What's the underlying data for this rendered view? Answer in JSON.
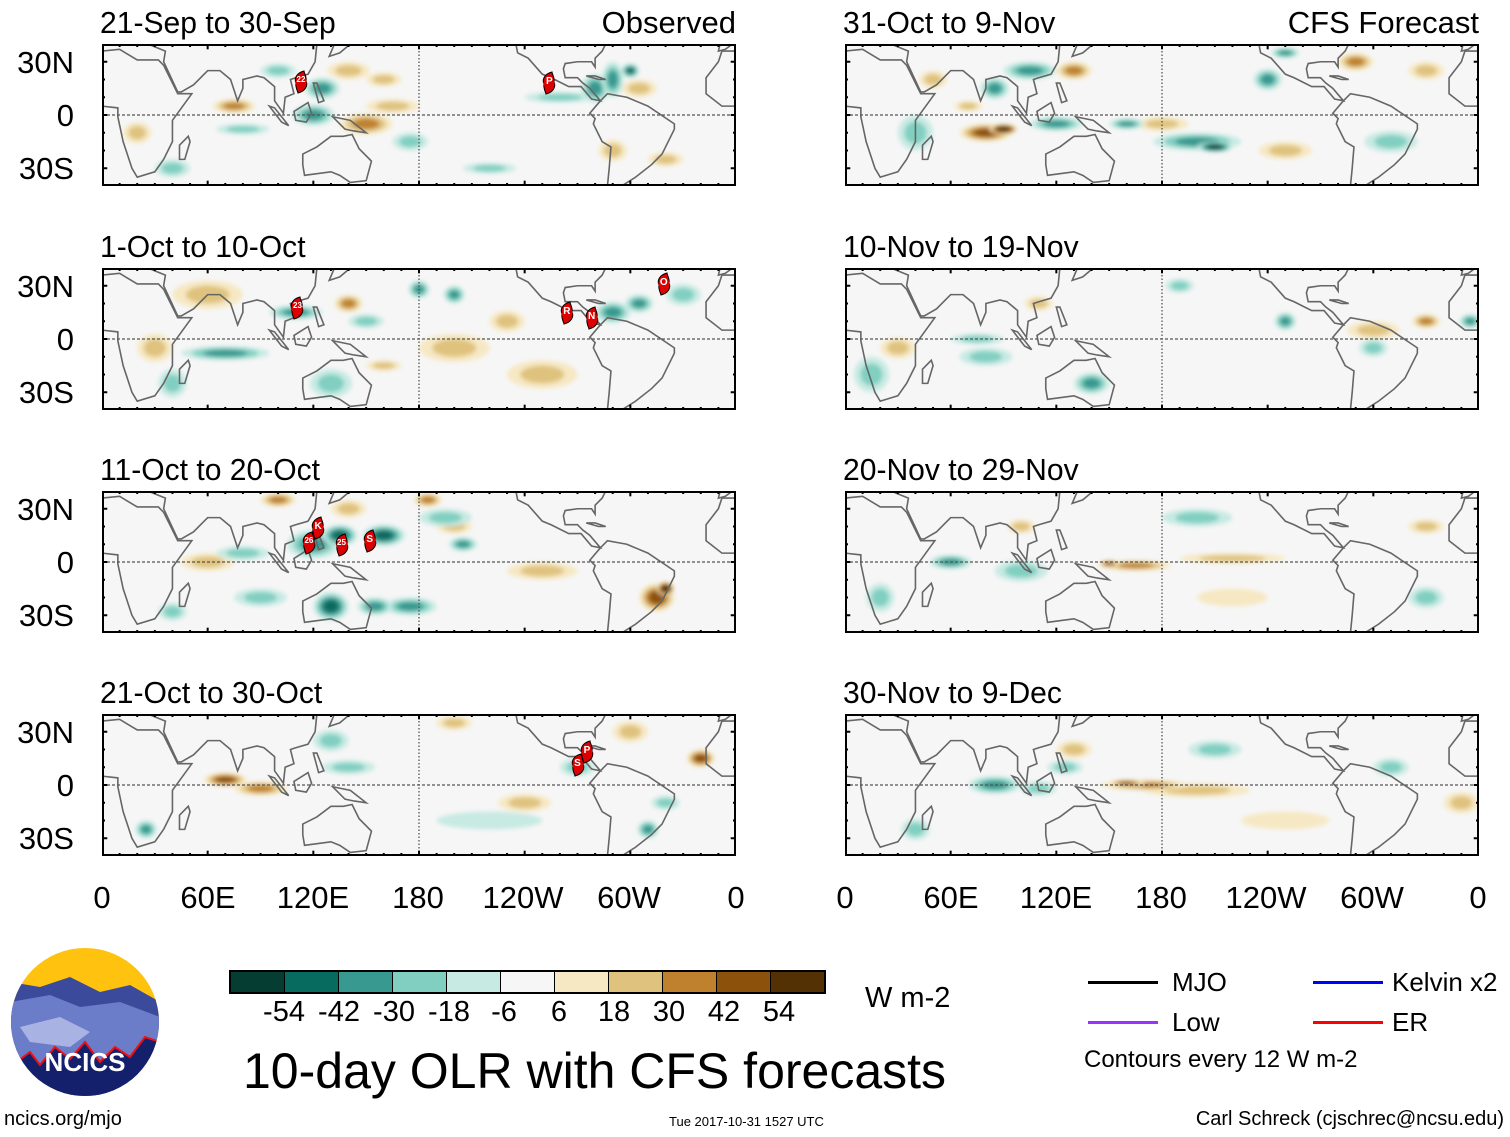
{
  "figure_title": "10-day OLR with CFS forecasts",
  "units": "W m-2",
  "left_tag": "Observed",
  "right_tag": "CFS Forecast",
  "lat_labels": [
    "30N",
    "0",
    "30S"
  ],
  "lon_labels": [
    "0",
    "60E",
    "120E",
    "180",
    "120W",
    "60W",
    "0"
  ],
  "colorbar": {
    "labels": [
      "-54",
      "-42",
      "-30",
      "-18",
      "-6",
      "6",
      "18",
      "30",
      "42",
      "54"
    ],
    "colors": [
      "#053d33",
      "#086b60",
      "#389990",
      "#80cfc1",
      "#c7eae3",
      "#f6f6f6",
      "#f6e8c3",
      "#dfc27d",
      "#bf812d",
      "#8c510a",
      "#543005"
    ]
  },
  "legend": {
    "mjo": "MJO",
    "kelvin": "Kelvin x2",
    "low": "Low",
    "er": "ER",
    "contours": "Contours every 12 W m-2",
    "colors": {
      "mjo": "#000000",
      "kelvin": "#0000ff",
      "low": "#9933ff",
      "er": "#ff0000"
    }
  },
  "footer": {
    "left": "ncics.org/mjo",
    "center": "Tue 2017-10-31 1527 UTC",
    "right": "Carl Schreck (cjschrec@ncsu.edu)"
  },
  "logo_text": "NCICS",
  "panels": [
    {
      "title": "21-Sep to 30-Sep",
      "side": "observed",
      "storms": [
        {
          "label": "22",
          "lon": 113,
          "lat": 18.5
        },
        {
          "label": "P",
          "lon": 254,
          "lat": 18
        }
      ],
      "anomalies": [
        [
          75,
          5,
          12,
          4,
          30
        ],
        [
          150,
          -5,
          15,
          6,
          35
        ],
        [
          165,
          5,
          15,
          4,
          20
        ],
        [
          140,
          25,
          12,
          5,
          15
        ],
        [
          160,
          20,
          10,
          4,
          20
        ],
        [
          20,
          -10,
          8,
          6,
          15
        ],
        [
          290,
          -20,
          8,
          6,
          15
        ],
        [
          320,
          -25,
          10,
          4,
          15
        ],
        [
          305,
          15,
          10,
          5,
          15
        ],
        [
          120,
          0,
          12,
          6,
          -25
        ],
        [
          125,
          15,
          10,
          6,
          -25
        ],
        [
          80,
          -8,
          15,
          3,
          -20
        ],
        [
          100,
          25,
          10,
          4,
          -20
        ],
        [
          175,
          -15,
          10,
          5,
          -20
        ],
        [
          280,
          15,
          8,
          8,
          -25
        ],
        [
          290,
          20,
          6,
          10,
          -35
        ],
        [
          300,
          25,
          5,
          4,
          -45
        ],
        [
          260,
          10,
          20,
          3,
          -12
        ],
        [
          40,
          -30,
          10,
          5,
          -12
        ],
        [
          220,
          -30,
          15,
          3,
          -12
        ]
      ]
    },
    {
      "title": "1-Oct to 10-Oct",
      "side": "observed",
      "storms": [
        {
          "label": "23",
          "lon": 111,
          "lat": 17.4
        },
        {
          "label": "R",
          "lon": 264,
          "lat": 14.5
        },
        {
          "label": "N",
          "lon": 278,
          "lat": 12
        },
        {
          "label": "O",
          "lon": 319,
          "lat": 31
        }
      ],
      "anomalies": [
        [
          230,
          10,
          10,
          6,
          15
        ],
        [
          140,
          20,
          8,
          5,
          25
        ],
        [
          160,
          -15,
          10,
          3,
          20
        ],
        [
          200,
          -5,
          20,
          8,
          12
        ],
        [
          250,
          -20,
          20,
          8,
          12
        ],
        [
          30,
          -5,
          10,
          8,
          15
        ],
        [
          60,
          25,
          20,
          8,
          12
        ],
        [
          70,
          -8,
          25,
          4,
          -25
        ],
        [
          110,
          15,
          15,
          4,
          -25
        ],
        [
          150,
          10,
          10,
          4,
          -22
        ],
        [
          180,
          28,
          6,
          5,
          -25
        ],
        [
          200,
          25,
          6,
          5,
          -30
        ],
        [
          290,
          15,
          10,
          6,
          -30
        ],
        [
          305,
          20,
          8,
          5,
          -30
        ],
        [
          130,
          -25,
          12,
          8,
          -18
        ],
        [
          40,
          -25,
          8,
          8,
          -15
        ],
        [
          330,
          25,
          10,
          6,
          -15
        ]
      ]
    },
    {
      "title": "11-Oct to 20-Oct",
      "side": "observed",
      "storms": [
        {
          "label": "K",
          "lon": 122.7,
          "lat": 19
        },
        {
          "label": "26",
          "lon": 117.5,
          "lat": 10.5
        },
        {
          "label": "25",
          "lon": 136,
          "lat": 9.5
        },
        {
          "label": "S",
          "lon": 152,
          "lat": 12
        }
      ],
      "anomalies": [
        [
          185,
          35,
          8,
          4,
          30
        ],
        [
          100,
          35,
          10,
          4,
          25
        ],
        [
          140,
          30,
          10,
          5,
          20
        ],
        [
          315,
          -20,
          10,
          8,
          45
        ],
        [
          320,
          -15,
          5,
          4,
          60
        ],
        [
          250,
          -5,
          20,
          5,
          15
        ],
        [
          60,
          0,
          15,
          5,
          15
        ],
        [
          200,
          20,
          10,
          4,
          15
        ],
        [
          120,
          10,
          15,
          8,
          -35
        ],
        [
          135,
          15,
          10,
          6,
          -45
        ],
        [
          160,
          15,
          12,
          6,
          -40
        ],
        [
          130,
          -25,
          10,
          8,
          -40
        ],
        [
          155,
          -25,
          10,
          5,
          -35
        ],
        [
          175,
          -25,
          15,
          5,
          -30
        ],
        [
          205,
          10,
          8,
          4,
          -25
        ],
        [
          80,
          5,
          15,
          4,
          -22
        ],
        [
          195,
          25,
          15,
          5,
          -20
        ],
        [
          90,
          -20,
          15,
          5,
          -18
        ],
        [
          40,
          -28,
          8,
          5,
          -15
        ]
      ]
    },
    {
      "title": "21-Oct to 30-Oct",
      "side": "observed",
      "storms": [
        {
          "label": "P",
          "lon": 275.4,
          "lat": 18.5
        },
        {
          "label": "S",
          "lon": 270,
          "lat": 11
        }
      ],
      "anomalies": [
        [
          70,
          3,
          12,
          4,
          40
        ],
        [
          90,
          -2,
          15,
          4,
          30
        ],
        [
          340,
          15,
          8,
          5,
          40
        ],
        [
          300,
          30,
          10,
          6,
          20
        ],
        [
          200,
          35,
          10,
          4,
          15
        ],
        [
          240,
          -10,
          15,
          5,
          12
        ],
        [
          130,
          25,
          10,
          6,
          -20
        ],
        [
          140,
          10,
          15,
          4,
          -18
        ],
        [
          270,
          10,
          10,
          5,
          -20
        ],
        [
          310,
          -25,
          6,
          5,
          -30
        ],
        [
          25,
          -25,
          6,
          5,
          -25
        ],
        [
          220,
          -20,
          30,
          5,
          -10
        ],
        [
          320,
          -10,
          8,
          4,
          -20
        ]
      ]
    },
    {
      "title": "31-Oct to 9-Nov",
      "side": "forecast",
      "storms": [],
      "anomalies": [
        [
          80,
          -10,
          15,
          5,
          45
        ],
        [
          90,
          -8,
          8,
          3,
          60
        ],
        [
          130,
          25,
          10,
          5,
          25
        ],
        [
          290,
          30,
          10,
          5,
          25
        ],
        [
          330,
          25,
          10,
          5,
          20
        ],
        [
          180,
          -5,
          15,
          4,
          15
        ],
        [
          50,
          20,
          8,
          5,
          20
        ],
        [
          70,
          5,
          8,
          3,
          20
        ],
        [
          250,
          -20,
          15,
          5,
          12
        ],
        [
          200,
          -15,
          25,
          5,
          -30
        ],
        [
          210,
          -18,
          10,
          3,
          -54
        ],
        [
          120,
          -5,
          15,
          4,
          -25
        ],
        [
          160,
          -5,
          10,
          3,
          -35
        ],
        [
          105,
          25,
          15,
          5,
          -30
        ],
        [
          85,
          15,
          8,
          6,
          -25
        ],
        [
          240,
          20,
          8,
          6,
          -25
        ],
        [
          250,
          35,
          8,
          3,
          -25
        ],
        [
          40,
          -10,
          10,
          10,
          -18
        ],
        [
          310,
          -15,
          15,
          6,
          -15
        ]
      ]
    },
    {
      "title": "10-Nov to 19-Nov",
      "side": "forecast",
      "storms": [],
      "anomalies": [
        [
          110,
          20,
          8,
          4,
          20
        ],
        [
          300,
          5,
          15,
          5,
          15
        ],
        [
          330,
          10,
          8,
          4,
          30
        ],
        [
          30,
          -5,
          10,
          6,
          12
        ],
        [
          75,
          0,
          15,
          3,
          -20
        ],
        [
          80,
          -10,
          15,
          5,
          -15
        ],
        [
          140,
          -25,
          10,
          6,
          -25
        ],
        [
          190,
          30,
          8,
          4,
          -20
        ],
        [
          250,
          10,
          6,
          5,
          -30
        ],
        [
          355,
          10,
          6,
          4,
          -25
        ],
        [
          300,
          -5,
          8,
          5,
          -20
        ],
        [
          15,
          -20,
          10,
          10,
          -12
        ]
      ]
    },
    {
      "title": "20-Nov to 29-Nov",
      "side": "forecast",
      "storms": [],
      "anomalies": [
        [
          165,
          -2,
          20,
          3,
          30
        ],
        [
          150,
          -1,
          6,
          2,
          40
        ],
        [
          220,
          2,
          30,
          3,
          15
        ],
        [
          100,
          20,
          8,
          4,
          12
        ],
        [
          330,
          20,
          10,
          4,
          12
        ],
        [
          220,
          -20,
          20,
          5,
          10
        ],
        [
          60,
          0,
          12,
          4,
          -25
        ],
        [
          100,
          -5,
          15,
          6,
          -20
        ],
        [
          200,
          25,
          20,
          5,
          -12
        ],
        [
          330,
          -20,
          10,
          6,
          -12
        ],
        [
          20,
          -20,
          8,
          8,
          -12
        ]
      ]
    },
    {
      "title": "30-Nov to 9-Dec",
      "side": "forecast",
      "storms": [],
      "anomalies": [
        [
          170,
          0,
          25,
          3,
          35
        ],
        [
          160,
          1,
          10,
          2,
          45
        ],
        [
          200,
          -3,
          30,
          4,
          15
        ],
        [
          130,
          20,
          10,
          5,
          12
        ],
        [
          250,
          -20,
          25,
          5,
          10
        ],
        [
          350,
          -10,
          10,
          6,
          12
        ],
        [
          85,
          0,
          15,
          5,
          -30
        ],
        [
          110,
          -2,
          10,
          4,
          -20
        ],
        [
          125,
          10,
          10,
          4,
          -18
        ],
        [
          210,
          20,
          15,
          5,
          -12
        ],
        [
          310,
          10,
          10,
          5,
          -12
        ],
        [
          40,
          -25,
          8,
          6,
          -12
        ]
      ]
    }
  ]
}
